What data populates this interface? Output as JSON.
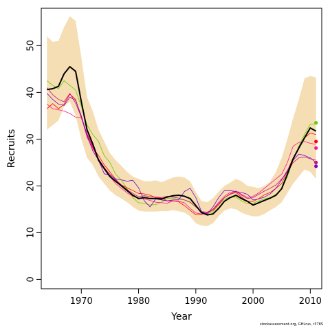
{
  "chart_data": {
    "type": "line",
    "xlabel": "Year",
    "ylabel": "Recruits",
    "xlim": [
      1963,
      2012
    ],
    "ylim": [
      -2,
      58
    ],
    "x_ticks": [
      1970,
      1980,
      1990,
      2000,
      2010
    ],
    "y_ticks": [
      0,
      10,
      20,
      30,
      40,
      50
    ],
    "grid": false,
    "colors": {
      "band": "#f5deb3",
      "main": "#000000",
      "axis": "#000000"
    },
    "band": {
      "name": "uncertainty interval",
      "x": [
        1964,
        1965,
        1966,
        1967,
        1968,
        1969,
        1970,
        1971,
        1972,
        1973,
        1974,
        1975,
        1976,
        1977,
        1978,
        1979,
        1980,
        1981,
        1982,
        1983,
        1984,
        1985,
        1986,
        1987,
        1988,
        1989,
        1990,
        1991,
        1992,
        1993,
        1994,
        1995,
        1996,
        1997,
        1998,
        1999,
        2000,
        2001,
        2002,
        2003,
        2004,
        2005,
        2006,
        2007,
        2008,
        2009,
        2010,
        2011
      ],
      "upper": [
        52,
        50.8,
        51,
        54,
        56.3,
        55.3,
        47.5,
        39,
        36,
        32,
        29.5,
        27,
        25.5,
        24.3,
        23,
        22,
        21.5,
        21,
        21,
        21.2,
        20.8,
        21.3,
        21.8,
        22,
        21.8,
        21,
        18.7,
        16.8,
        16.5,
        17.4,
        18.8,
        20,
        20.7,
        21.5,
        21,
        20,
        19.8,
        19.5,
        20,
        21,
        23,
        26,
        30,
        34.5,
        38.5,
        43,
        43.5,
        43.2
      ],
      "lower": [
        32,
        33,
        34,
        37,
        38,
        35,
        30,
        26,
        24.5,
        22,
        20.5,
        19,
        18,
        17.3,
        16.5,
        15.5,
        14.7,
        14.5,
        14.5,
        14.5,
        14.6,
        14.6,
        14.8,
        14.6,
        14.3,
        13.5,
        12,
        11.5,
        11.4,
        12,
        13.5,
        14.7,
        15.2,
        15,
        14.3,
        13.8,
        13.5,
        13.5,
        14,
        14.8,
        15.5,
        16.5,
        18.5,
        20.5,
        22,
        23.5,
        23,
        21.5
      ]
    },
    "series": [
      {
        "color": "#000000",
        "width": 2,
        "x": [
          1964,
          1965,
          1966,
          1967,
          1968,
          1969,
          1970,
          1971,
          1972,
          1973,
          1974,
          1975,
          1976,
          1977,
          1978,
          1979,
          1980,
          1981,
          1982,
          1983,
          1984,
          1985,
          1986,
          1987,
          1988,
          1989,
          1990,
          1991,
          1992,
          1993,
          1994,
          1995,
          1996,
          1997,
          1998,
          1999,
          2000,
          2001,
          2002,
          2003,
          2004,
          2005,
          2006,
          2007,
          2008,
          2009,
          2010,
          2011
        ],
        "values": [
          40.6,
          40.8,
          41.3,
          44,
          45.5,
          44.5,
          38,
          32,
          29,
          25.5,
          23.7,
          22,
          21,
          20,
          19,
          18,
          17.3,
          17.5,
          17.3,
          17.3,
          17.2,
          17.6,
          17.9,
          18,
          17.8,
          17.3,
          15.8,
          14.3,
          13.8,
          14,
          15.2,
          16.7,
          17.5,
          18,
          17.3,
          16.7,
          15.9,
          16.4,
          16.9,
          17.4,
          18,
          19.4,
          22.5,
          25.8,
          28.1,
          30.3,
          32.4,
          31.7
        ]
      },
      {
        "color": "#66cc00",
        "width": 0.8,
        "x": [
          1964,
          1965,
          1966,
          1967,
          1968,
          1969,
          1970,
          1971,
          1972,
          1973,
          1974,
          1975,
          1976,
          1977,
          1978,
          1979,
          1980,
          1981,
          1982,
          1983,
          1984,
          1985,
          1986,
          1987,
          1988,
          1989,
          1990,
          1991,
          1992,
          1993,
          1994,
          1995,
          1996,
          1997,
          1998,
          1999,
          2000,
          2001,
          2002,
          2003,
          2004,
          2005,
          2006,
          2007,
          2008,
          2009,
          2010,
          2011
        ],
        "values": [
          42.5,
          41.5,
          40.8,
          42.5,
          41.5,
          40.5,
          37,
          33,
          31,
          29.5,
          26.5,
          25,
          22.5,
          21.2,
          19.4,
          17.5,
          16.4,
          16.3,
          15.9,
          16,
          16.5,
          17.3,
          17.4,
          17.1,
          17,
          16.6,
          15.5,
          14.5,
          14,
          14.5,
          16,
          17.2,
          17.6,
          17.6,
          16.8,
          16.2,
          16.3,
          16.8,
          17.2,
          17.5,
          18.2,
          19.3,
          22,
          25.5,
          28.5,
          31,
          33.2,
          33.2
        ],
        "end_value": 33.5
      },
      {
        "color": "#ff0000",
        "width": 0.8,
        "x": [
          1964,
          1965,
          1966,
          1967,
          1968,
          1969,
          1970,
          1971,
          1972,
          1973,
          1974,
          1975,
          1976,
          1977,
          1978,
          1979,
          1980,
          1981,
          1982,
          1983,
          1984,
          1985,
          1986,
          1987,
          1988,
          1989,
          1990,
          1991,
          1992,
          1993,
          1994,
          1995,
          1996,
          1997,
          1998,
          1999,
          2000,
          2001,
          2002,
          2003,
          2004,
          2005,
          2006,
          2007,
          2008,
          2009,
          2010,
          2011
        ],
        "values": [
          36.5,
          37.6,
          36.5,
          37.5,
          39.6,
          38.5,
          34.5,
          31,
          28.2,
          26.5,
          24.5,
          23,
          21.4,
          20.2,
          19.6,
          19,
          18.4,
          18.3,
          18,
          17.5,
          17.4,
          16.8,
          16.8,
          16.6,
          15.8,
          14.8,
          13.8,
          13.9,
          14.2,
          14.8,
          16,
          17.5,
          18.2,
          18.6,
          17.6,
          16.7,
          16.7,
          17.3,
          18.1,
          18.6,
          19.5,
          20.5,
          23.2,
          26,
          28.3,
          30.3,
          31.3,
          31
        ],
        "end_value": 29.5
      },
      {
        "color": "#ff1493",
        "width": 0.8,
        "x": [
          1964,
          1965,
          1966,
          1967,
          1968,
          1969,
          1970,
          1971,
          1972,
          1973,
          1974,
          1975,
          1976,
          1977,
          1978,
          1979,
          1980,
          1981,
          1982,
          1983,
          1984,
          1985,
          1986,
          1987,
          1988,
          1989,
          1990,
          1991,
          1992,
          1993,
          1994,
          1995,
          1996,
          1997,
          1998,
          1999,
          2000,
          2001,
          2002,
          2003,
          2004,
          2005,
          2006,
          2007,
          2008,
          2009,
          2010,
          2011
        ],
        "values": [
          37.5,
          36.5,
          36.3,
          36,
          35.5,
          34.7,
          34.7,
          30.4,
          28,
          25.8,
          24,
          22,
          20.5,
          19.5,
          18.5,
          17.8,
          17.4,
          17.2,
          16.9,
          16.5,
          16.4,
          16.3,
          16.8,
          16.7,
          16.4,
          15.2,
          14.2,
          14,
          14.3,
          15,
          16.5,
          17.8,
          18.6,
          18.9,
          18.2,
          17.5,
          17.8,
          18.5,
          19.5,
          20.5,
          21.5,
          22.5,
          25,
          28.5,
          29.3,
          29.5,
          29.1,
          28.9
        ],
        "end_value": 28.1
      },
      {
        "color": "#cc1077",
        "width": 0.8,
        "x": [
          1964,
          1965,
          1966,
          1967,
          1968,
          1969,
          1970,
          1971,
          1972,
          1973,
          1974,
          1975,
          1976,
          1977,
          1978,
          1979,
          1980,
          1981,
          1982,
          1983,
          1984,
          1985,
          1986,
          1987,
          1988,
          1989,
          1990,
          1991,
          1992,
          1993,
          1994,
          1995,
          1996,
          1997,
          1998,
          1999,
          2000,
          2001,
          2002,
          2003,
          2004,
          2005,
          2006,
          2007,
          2008,
          2009,
          2010,
          2011
        ],
        "values": [
          41,
          39.5,
          38.5,
          38,
          39.8,
          37.7,
          34.7,
          31.2,
          28.5,
          25.8,
          23.9,
          22.5,
          21.3,
          20.2,
          19.2,
          18.4,
          17.7,
          17.9,
          17.7,
          17.6,
          17.5,
          17.8,
          17.6,
          17.4,
          17,
          16.5,
          15.5,
          14.5,
          14.4,
          15,
          16.2,
          17.5,
          18.3,
          18.8,
          18,
          17.3,
          17.5,
          18.2,
          18.9,
          19.5,
          20.2,
          21.5,
          23,
          25,
          26,
          26.2,
          25.8,
          25.5
        ],
        "end_value": 25
      },
      {
        "color": "#7a00cc",
        "width": 0.8,
        "x": [
          1964,
          1965,
          1966,
          1967,
          1968,
          1969,
          1970,
          1971,
          1972,
          1973,
          1974,
          1975,
          1976,
          1977,
          1978,
          1979,
          1980,
          1981,
          1982,
          1983,
          1984,
          1985,
          1986,
          1987,
          1988,
          1989,
          1990,
          1991,
          1992,
          1993,
          1994,
          1995,
          1996,
          1997,
          1998,
          1999,
          2000,
          2001,
          2002,
          2003,
          2004,
          2005,
          2006,
          2007,
          2008,
          2009,
          2010,
          2011
        ],
        "values": [
          39.8,
          38.5,
          37.5,
          37.2,
          39,
          38.3,
          35,
          30.8,
          27.5,
          25.5,
          22.6,
          22.3,
          21.5,
          21.3,
          21,
          21.2,
          19.6,
          16.8,
          15.5,
          17.2,
          17,
          16.8,
          17,
          17,
          18.8,
          19.5,
          17.5,
          14.5,
          14,
          15.5,
          17.5,
          19,
          19,
          18.8,
          18.6,
          18.2,
          17,
          17.2,
          17.6,
          18.3,
          19.5,
          21.3,
          23.3,
          25.5,
          26.8,
          26.5,
          26,
          25
        ],
        "end_value": 24.2
      }
    ]
  },
  "credit": "stockassessment.org, GHLrus, r378S"
}
